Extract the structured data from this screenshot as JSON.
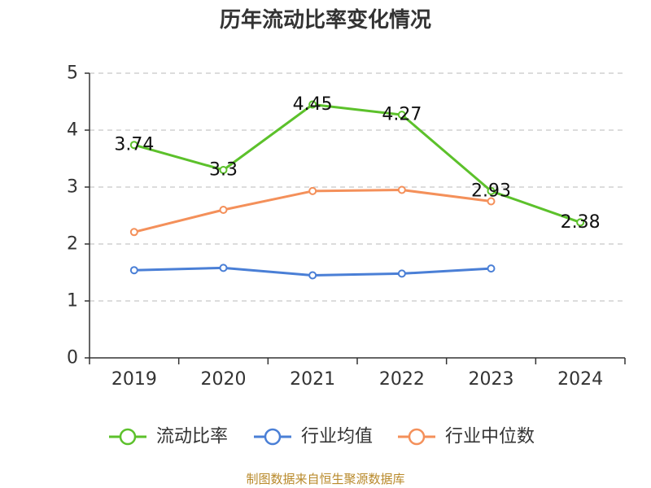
{
  "chart_data": {
    "type": "line",
    "title": "历年流动比率变化情况",
    "categories": [
      "2019",
      "2020",
      "2021",
      "2022",
      "2023",
      "2024"
    ],
    "ylim": [
      0,
      5
    ],
    "yticks": [
      0,
      1,
      2,
      3,
      4,
      5
    ],
    "grid": true,
    "legend_position": "bottom",
    "series": [
      {
        "name": "流动比率",
        "color": "#5cc12b",
        "values": [
          3.74,
          3.3,
          4.45,
          4.27,
          2.93,
          2.38
        ],
        "labels": [
          "3.74",
          "3.3",
          "4.45",
          "4.27",
          "2.93",
          "2.38"
        ]
      },
      {
        "name": "行业均值",
        "color": "#4a7fd6",
        "values": [
          1.54,
          1.58,
          1.45,
          1.48,
          1.57,
          null
        ]
      },
      {
        "name": "行业中位数",
        "color": "#f4905a",
        "values": [
          2.21,
          2.6,
          2.93,
          2.95,
          2.75,
          null
        ]
      }
    ]
  },
  "source": "制图数据来自恒生聚源数据库"
}
